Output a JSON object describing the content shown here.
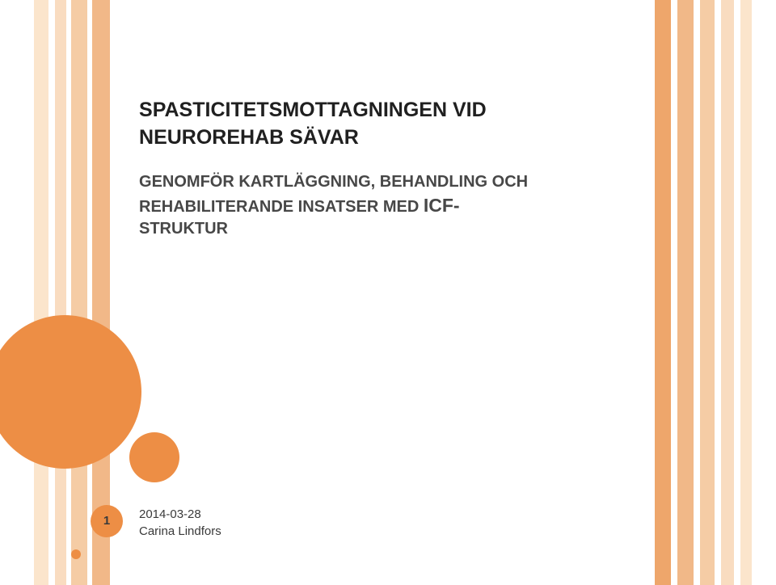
{
  "title": {
    "line1_big": "S",
    "line1_rest": "PASTICITETSMOTTAGNINGEN VID",
    "line2_big1": "N",
    "line2_rest1": "EUROREHAB ",
    "line2_big2": "S",
    "line2_rest2": "ÄVAR"
  },
  "subtitle": {
    "l1_b1": "G",
    "l1_r1": "ENOMFÖR KARTLÄGGNING, BEHANDLING OCH",
    "l2_r1": "REHABILITERANDE INSATSER MED  ",
    "l2_icf": "ICF-",
    "l3": "STRUKTUR"
  },
  "footer": {
    "date": "2014-03-28",
    "author": "Carina Lindfors"
  },
  "page_number": "1",
  "colors": {
    "accent": "#ed8e45",
    "stripe_light": "#fbe5cc",
    "stripe_mid": "#f5cca5",
    "stripe_dark": "#f1b888",
    "text_dark": "#202020",
    "text_grey": "#474747"
  }
}
